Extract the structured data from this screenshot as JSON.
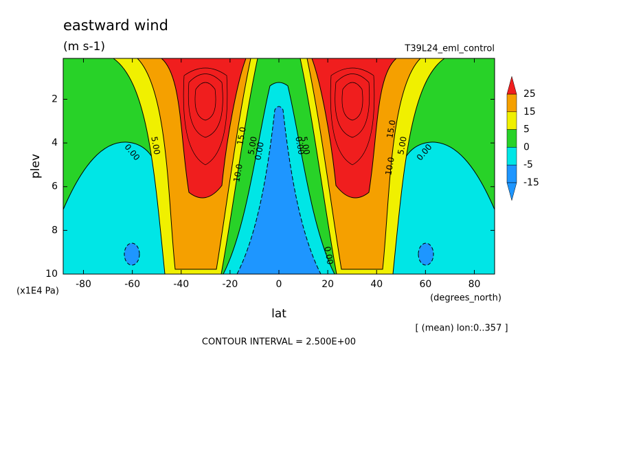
{
  "chart_data": {
    "type": "contour",
    "title": "eastward wind",
    "units": "(m s-1)",
    "run": "T39L24_eml_control",
    "x_label": "lat",
    "x_units": "(degrees_north)",
    "y_label": "plev",
    "y_units": "(x1E4 Pa)",
    "mean_note": "[ (mean) lon:0..357 ]",
    "footer": "CONTOUR INTERVAL = 2.500E+00",
    "xlim": [
      -88.3,
      88.3
    ],
    "xticks": [
      -80,
      -60,
      -40,
      -20,
      0,
      20,
      40,
      60,
      80
    ],
    "ylim": [
      10,
      0.13
    ],
    "yticks": [
      2,
      4,
      6,
      8,
      10
    ],
    "colorbar": {
      "levels": [
        25,
        15,
        5,
        0,
        -5,
        -15
      ],
      "colors": [
        "#f01e1e",
        "#f5a000",
        "#f0f000",
        "#28d228",
        "#00e6e6",
        "#1e96ff",
        "#1e96ff"
      ]
    },
    "contour_labels": [
      "0.00",
      "5.00",
      "10.0",
      "15.0",
      "5.00",
      "0.00",
      "0.00",
      "5.00",
      "10.0",
      "15.0",
      "5.00",
      "0.00",
      "0.00"
    ]
  }
}
